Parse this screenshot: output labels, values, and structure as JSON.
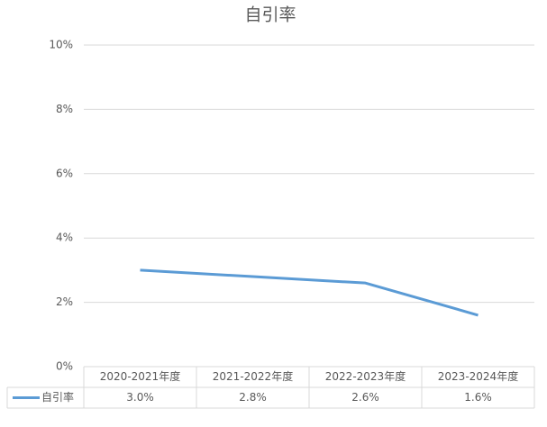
{
  "chart_data": {
    "type": "line",
    "title": "自引率",
    "categories": [
      "2020-2021年度",
      "2021-2022年度",
      "2022-2023年度",
      "2023-2024年度"
    ],
    "series": [
      {
        "name": "自引率",
        "color": "#5b9bd5",
        "values": [
          3.0,
          2.8,
          2.6,
          1.6
        ],
        "value_labels": [
          "3.0%",
          "2.8%",
          "2.6%",
          "1.6%"
        ]
      }
    ],
    "ylim": [
      0,
      10
    ],
    "yticks": [
      {
        "value": 0,
        "label": "0%"
      },
      {
        "value": 2,
        "label": "2%"
      },
      {
        "value": 4,
        "label": "4%"
      },
      {
        "value": 6,
        "label": "6%"
      },
      {
        "value": 8,
        "label": "8%"
      },
      {
        "value": 10,
        "label": "10%"
      }
    ],
    "grid": true,
    "data_table": true
  }
}
